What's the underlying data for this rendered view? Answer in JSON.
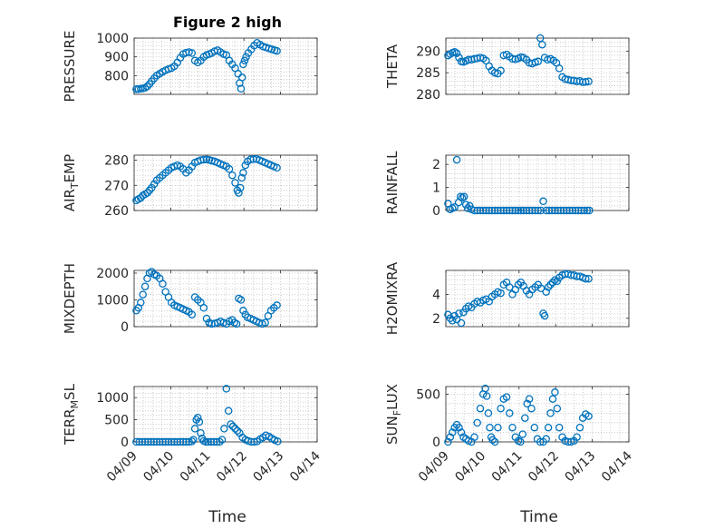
{
  "figure": {
    "title": "Figure 2 high",
    "xlabel": "Time",
    "marker_color": "#0072BD"
  },
  "chart_data": [
    {
      "type": "scatter",
      "ylabel": "PRESSURE",
      "ylim": [
        700,
        1000
      ],
      "yticks": [
        800,
        900,
        1000
      ],
      "x_days": [
        0.06,
        0.12,
        0.18,
        0.24,
        0.3,
        0.36,
        0.42,
        0.48,
        0.55,
        0.62,
        0.7,
        0.78,
        0.86,
        0.94,
        1.02,
        1.1,
        1.18,
        1.26,
        1.34,
        1.42,
        1.5,
        1.58,
        1.66,
        1.74,
        1.82,
        1.9,
        1.98,
        2.05,
        2.12,
        2.2,
        2.28,
        2.36,
        2.44,
        2.52,
        2.6,
        2.68,
        2.76,
        2.84,
        2.88,
        2.92,
        2.95,
        2.98,
        3.02,
        3.06,
        3.12,
        3.2,
        3.28,
        3.36,
        3.44,
        3.52,
        3.6,
        3.68,
        3.76,
        3.84,
        3.9
      ],
      "y": [
        728,
        728,
        730,
        732,
        735,
        742,
        755,
        770,
        785,
        800,
        810,
        820,
        828,
        835,
        840,
        850,
        870,
        895,
        915,
        922,
        925,
        920,
        880,
        870,
        880,
        900,
        910,
        915,
        920,
        930,
        935,
        925,
        915,
        910,
        880,
        860,
        840,
        810,
        760,
        730,
        790,
        860,
        880,
        900,
        920,
        940,
        960,
        975,
        965,
        955,
        950,
        945,
        940,
        935,
        932
      ]
    },
    {
      "type": "scatter",
      "ylabel": "THETA",
      "ylim": [
        280,
        293
      ],
      "yticks": [
        280,
        285,
        290
      ],
      "x_days": [
        0.06,
        0.12,
        0.18,
        0.24,
        0.3,
        0.36,
        0.42,
        0.48,
        0.55,
        0.62,
        0.7,
        0.78,
        0.86,
        0.94,
        1.02,
        1.1,
        1.18,
        1.26,
        1.34,
        1.42,
        1.5,
        1.58,
        1.66,
        1.74,
        1.82,
        1.9,
        1.98,
        2.05,
        2.12,
        2.2,
        2.28,
        2.36,
        2.44,
        2.52,
        2.58,
        2.63,
        2.7,
        2.78,
        2.86,
        2.94,
        3.02,
        3.1,
        3.18,
        3.26,
        3.34,
        3.42,
        3.5,
        3.58,
        3.66,
        3.74,
        3.82,
        3.9
      ],
      "y": [
        289,
        289.3,
        289.6,
        289.8,
        289.5,
        288.5,
        287.6,
        287.5,
        287.7,
        288,
        288,
        288.2,
        288.3,
        288.5,
        288.3,
        287.8,
        286.5,
        285.5,
        285,
        284.8,
        285.5,
        289,
        289.2,
        288.7,
        288.2,
        288.1,
        288.3,
        288.6,
        288.5,
        288.0,
        287.3,
        287.1,
        287.4,
        287.6,
        293,
        291.5,
        288.5,
        288,
        288.2,
        287.8,
        287.3,
        286,
        284,
        283.5,
        283.4,
        283.2,
        283.2,
        283,
        283.1,
        282.8,
        282.9,
        283
      ]
    },
    {
      "type": "scatter",
      "ylabel": "AIR_TEMP",
      "ylim": [
        260,
        282
      ],
      "yticks": [
        260,
        270,
        280
      ],
      "x_days": [
        0.06,
        0.12,
        0.18,
        0.24,
        0.3,
        0.36,
        0.42,
        0.48,
        0.55,
        0.62,
        0.7,
        0.78,
        0.86,
        0.94,
        1.02,
        1.1,
        1.18,
        1.26,
        1.34,
        1.42,
        1.5,
        1.58,
        1.66,
        1.74,
        1.82,
        1.9,
        1.98,
        2.05,
        2.12,
        2.2,
        2.28,
        2.36,
        2.44,
        2.52,
        2.6,
        2.68,
        2.76,
        2.82,
        2.86,
        2.9,
        2.94,
        2.98,
        3.04,
        3.1,
        3.18,
        3.26,
        3.34,
        3.42,
        3.5,
        3.58,
        3.66,
        3.74,
        3.82,
        3.9
      ],
      "y": [
        264,
        264.5,
        265,
        266,
        266.5,
        267,
        268,
        269,
        270.5,
        272,
        273,
        274,
        275,
        276,
        277,
        277.5,
        278,
        277.5,
        276.5,
        275,
        276,
        277.5,
        279,
        279.5,
        280,
        280.2,
        280.3,
        280.1,
        279.8,
        279.5,
        279,
        278.5,
        278,
        277.5,
        276.5,
        274,
        271,
        268,
        267,
        269,
        273,
        275,
        278,
        279.5,
        280.3,
        280.4,
        280.5,
        280,
        279.5,
        279,
        278.5,
        278,
        277.5,
        277
      ]
    },
    {
      "type": "scatter",
      "ylabel": "RAINFALL",
      "ylim": [
        0,
        2.4
      ],
      "yticks": [
        0,
        1,
        2
      ],
      "x_days": [
        0.06,
        0.12,
        0.18,
        0.24,
        0.3,
        0.35,
        0.4,
        0.45,
        0.5,
        0.55,
        0.6,
        0.65,
        0.7,
        0.78,
        0.86,
        0.94,
        1.02,
        1.1,
        1.18,
        1.26,
        1.34,
        1.42,
        1.5,
        1.58,
        1.66,
        1.74,
        1.82,
        1.9,
        1.98,
        2.05,
        2.12,
        2.2,
        2.28,
        2.36,
        2.44,
        2.52,
        2.6,
        2.66,
        2.74,
        2.82,
        2.9,
        2.98,
        3.06,
        3.14,
        3.22,
        3.3,
        3.38,
        3.46,
        3.54,
        3.62,
        3.7,
        3.78,
        3.86,
        3.92
      ],
      "y": [
        0.3,
        0.05,
        0.1,
        0.15,
        2.2,
        0.35,
        0.6,
        0.55,
        0.6,
        0.25,
        0.1,
        0.2,
        0.05,
        0,
        0,
        0,
        0,
        0,
        0,
        0,
        0,
        0,
        0,
        0,
        0,
        0,
        0,
        0,
        0,
        0,
        0,
        0,
        0,
        0,
        0,
        0,
        0,
        0.4,
        0,
        0,
        0,
        0,
        0,
        0,
        0,
        0,
        0,
        0,
        0,
        0,
        0,
        0,
        0,
        0
      ]
    },
    {
      "type": "scatter",
      "ylabel": "MIXDEPTH",
      "ylim": [
        0,
        2100
      ],
      "yticks": [
        0,
        1000,
        2000
      ],
      "x_days": [
        0.06,
        0.12,
        0.18,
        0.24,
        0.3,
        0.36,
        0.42,
        0.48,
        0.55,
        0.62,
        0.7,
        0.78,
        0.86,
        0.94,
        1.02,
        1.1,
        1.18,
        1.26,
        1.34,
        1.42,
        1.5,
        1.58,
        1.66,
        1.74,
        1.82,
        1.9,
        1.98,
        2.05,
        2.12,
        2.2,
        2.28,
        2.36,
        2.44,
        2.52,
        2.6,
        2.68,
        2.74,
        2.8,
        2.86,
        2.92,
        2.98,
        3.04,
        3.1,
        3.18,
        3.26,
        3.34,
        3.42,
        3.5,
        3.58,
        3.66,
        3.74,
        3.82,
        3.9
      ],
      "y": [
        600,
        700,
        900,
        1200,
        1500,
        1800,
        2000,
        2050,
        1950,
        1900,
        1800,
        1600,
        1300,
        1100,
        900,
        800,
        750,
        700,
        650,
        600,
        550,
        450,
        1100,
        1000,
        900,
        700,
        300,
        150,
        100,
        120,
        150,
        200,
        150,
        100,
        200,
        250,
        150,
        100,
        1050,
        1000,
        600,
        450,
        350,
        300,
        250,
        200,
        150,
        100,
        150,
        400,
        600,
        700,
        800
      ]
    },
    {
      "type": "scatter",
      "ylabel": "H2OMIXRA",
      "ylim": [
        1.3,
        6
      ],
      "yticks": [
        2,
        4
      ],
      "x_days": [
        0.06,
        0.12,
        0.18,
        0.24,
        0.3,
        0.36,
        0.42,
        0.48,
        0.55,
        0.62,
        0.7,
        0.78,
        0.86,
        0.94,
        1.02,
        1.1,
        1.18,
        1.26,
        1.34,
        1.42,
        1.5,
        1.58,
        1.66,
        1.74,
        1.82,
        1.9,
        1.98,
        2.05,
        2.12,
        2.2,
        2.28,
        2.36,
        2.44,
        2.52,
        2.6,
        2.66,
        2.7,
        2.74,
        2.8,
        2.86,
        2.92,
        2.98,
        3.04,
        3.1,
        3.18,
        3.26,
        3.34,
        3.42,
        3.5,
        3.58,
        3.66,
        3.74,
        3.82,
        3.9
      ],
      "y": [
        2.3,
        2.0,
        1.8,
        2.2,
        1.9,
        2.4,
        1.6,
        2.5,
        2.8,
        3.0,
        2.9,
        3.2,
        3.4,
        3.3,
        3.5,
        3.6,
        3.4,
        3.8,
        4.0,
        4.2,
        4.1,
        4.8,
        5.0,
        4.6,
        4.0,
        4.4,
        4.8,
        5.0,
        4.7,
        4.3,
        4.0,
        4.4,
        4.6,
        4.8,
        4.5,
        2.4,
        2.2,
        4.2,
        4.6,
        4.8,
        5.0,
        5.2,
        5.1,
        5.4,
        5.6,
        5.7,
        5.7,
        5.6,
        5.6,
        5.5,
        5.5,
        5.4,
        5.3,
        5.3
      ]
    },
    {
      "type": "scatter",
      "ylabel": "TERR_MSL",
      "ylim": [
        0,
        1250
      ],
      "yticks": [
        0,
        500,
        1000
      ],
      "x_days": [
        0.06,
        0.14,
        0.22,
        0.3,
        0.38,
        0.46,
        0.54,
        0.62,
        0.7,
        0.78,
        0.86,
        0.94,
        1.02,
        1.1,
        1.18,
        1.26,
        1.34,
        1.42,
        1.5,
        1.58,
        1.62,
        1.66,
        1.7,
        1.74,
        1.78,
        1.82,
        1.86,
        1.9,
        1.96,
        2.02,
        2.1,
        2.18,
        2.26,
        2.34,
        2.4,
        2.46,
        2.52,
        2.58,
        2.64,
        2.7,
        2.76,
        2.82,
        2.88,
        2.96,
        3.04,
        3.12,
        3.2,
        3.28,
        3.36,
        3.44,
        3.52,
        3.6,
        3.68,
        3.76,
        3.84,
        3.92
      ],
      "y": [
        0,
        0,
        0,
        0,
        0,
        0,
        0,
        0,
        0,
        0,
        0,
        0,
        0,
        0,
        0,
        0,
        0,
        0,
        0,
        10,
        50,
        300,
        500,
        550,
        450,
        200,
        80,
        20,
        0,
        0,
        0,
        0,
        0,
        0,
        50,
        300,
        1200,
        700,
        400,
        350,
        300,
        250,
        200,
        100,
        50,
        20,
        0,
        0,
        10,
        60,
        100,
        150,
        120,
        80,
        40,
        10
      ]
    },
    {
      "type": "scatter",
      "ylabel": "SUN_FLUX",
      "ylim": [
        0,
        580
      ],
      "yticks": [
        0,
        500
      ],
      "x_days": [
        0.06,
        0.12,
        0.18,
        0.24,
        0.3,
        0.36,
        0.42,
        0.48,
        0.55,
        0.62,
        0.7,
        0.78,
        0.86,
        0.94,
        1.02,
        1.08,
        1.12,
        1.16,
        1.2,
        1.24,
        1.28,
        1.34,
        1.42,
        1.5,
        1.58,
        1.66,
        1.74,
        1.82,
        1.9,
        1.98,
        2.04,
        2.1,
        2.16,
        2.22,
        2.28,
        2.34,
        2.42,
        2.5,
        2.58,
        2.66,
        2.74,
        2.8,
        2.86,
        2.92,
        2.98,
        3.04,
        3.1,
        3.18,
        3.26,
        3.34,
        3.42,
        3.5,
        3.58,
        3.66,
        3.74,
        3.82,
        3.9
      ],
      "y": [
        0,
        50,
        100,
        150,
        180,
        150,
        100,
        50,
        30,
        10,
        0,
        50,
        200,
        350,
        500,
        560,
        480,
        300,
        150,
        50,
        20,
        0,
        150,
        350,
        450,
        470,
        300,
        150,
        50,
        10,
        0,
        80,
        250,
        400,
        450,
        350,
        150,
        30,
        0,
        0,
        30,
        150,
        300,
        450,
        520,
        350,
        150,
        50,
        10,
        0,
        0,
        10,
        50,
        150,
        250,
        290,
        270
      ]
    }
  ],
  "x_axis": {
    "start_day_label": "04/09",
    "tick_days": [
      0,
      1,
      2,
      3,
      4,
      5
    ],
    "tick_labels": [
      "04/09",
      "04/10",
      "04/11",
      "04/12",
      "04/13",
      "04/14"
    ]
  }
}
